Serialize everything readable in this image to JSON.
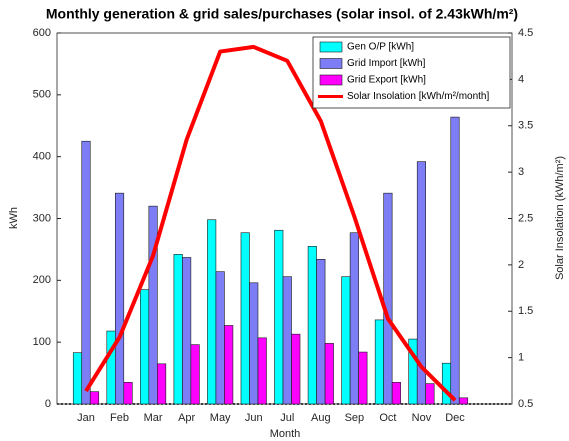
{
  "chart_data": {
    "type": "bar",
    "title": "Monthly generation & grid sales/purchases (solar insol. of 2.43kWh/m²)",
    "xlabel": "Month",
    "ylabel": "kWh",
    "y2label": "Solar Insolation (kWh/m²)",
    "categories": [
      "Jan",
      "Feb",
      "Mar",
      "Apr",
      "May",
      "Jun",
      "Jul",
      "Aug",
      "Sep",
      "Oct",
      "Nov",
      "Dec"
    ],
    "series": [
      {
        "name": "Gen O/P [kWh]",
        "type": "bar",
        "color": "#00ffff",
        "values": [
          83,
          118,
          185,
          242,
          298,
          277,
          281,
          255,
          206,
          136,
          105,
          66
        ]
      },
      {
        "name": "Grid Import [kWh]",
        "type": "bar",
        "color": "#7d7df5",
        "values": [
          425,
          341,
          320,
          237,
          214,
          196,
          206,
          234,
          277,
          341,
          392,
          464
        ]
      },
      {
        "name": "Grid Export [kWh]",
        "type": "bar",
        "color": "#ff00ff",
        "values": [
          20,
          35,
          65,
          96,
          127,
          107,
          113,
          98,
          84,
          35,
          33,
          10
        ]
      },
      {
        "name": "Solar Insolation [kWh/m²/month]",
        "type": "line",
        "axis": "y2",
        "color": "#ff0000",
        "values": [
          0.64,
          1.22,
          2.1,
          3.35,
          4.3,
          4.35,
          4.2,
          3.55,
          2.52,
          1.42,
          0.9,
          0.54
        ]
      }
    ],
    "ylim": [
      0,
      600
    ],
    "yticks": [
      0,
      100,
      200,
      300,
      400,
      500,
      600
    ],
    "y2lim": [
      0.5,
      4.5
    ],
    "y2ticks": [
      0.5,
      1,
      1.5,
      2,
      2.5,
      3,
      3.5,
      4,
      4.5
    ],
    "legend": "upper right"
  }
}
